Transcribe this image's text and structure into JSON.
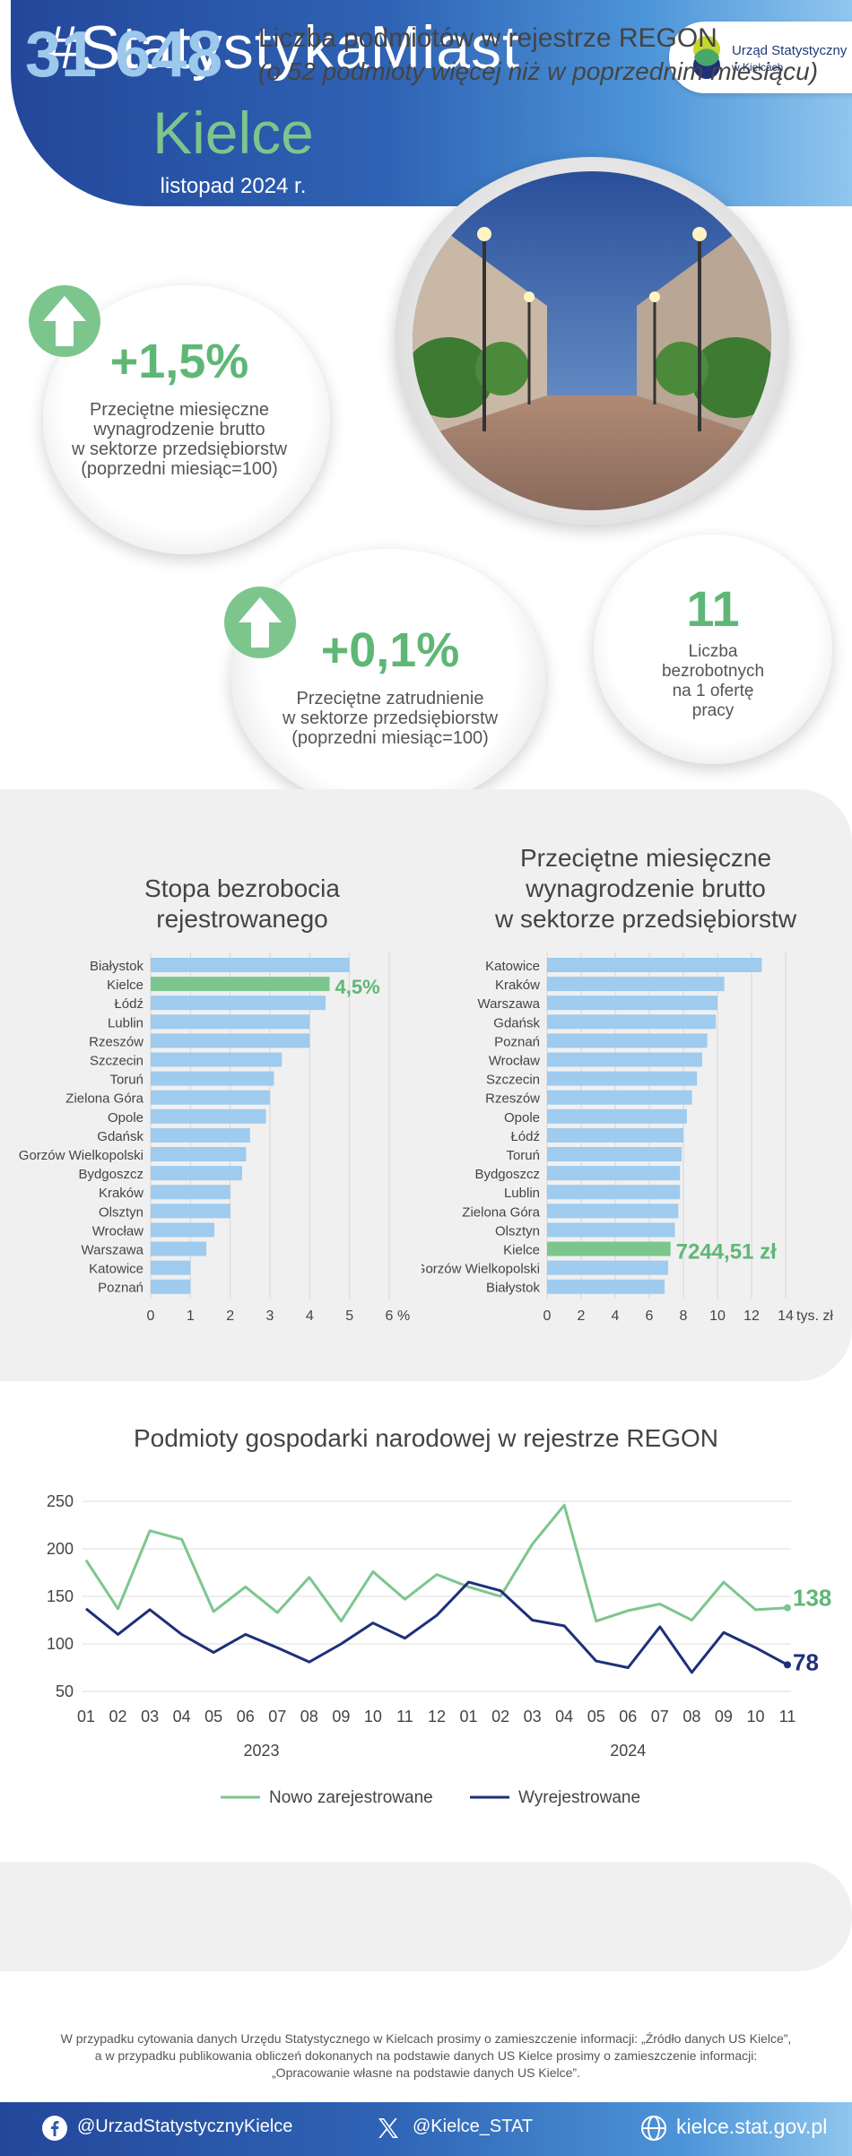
{
  "header": {
    "title": "#StatystykaMiast",
    "city": "Kielce",
    "date": "listopad 2024 r.",
    "logo_line1": "Urząd Statystyczny",
    "logo_line2": "w Kielcach"
  },
  "kpi": {
    "wage": {
      "value": "+1,5%",
      "label_lines": [
        "Przeciętne miesięczne",
        "wynagrodzenie brutto",
        "w sektorze przedsiębiorstw",
        "(poprzedni miesiąc=100)"
      ]
    },
    "employment": {
      "value": "+0,1%",
      "label_lines": [
        "Przeciętne zatrudnienie",
        "w sektorze przedsiębiorstw",
        "(poprzedni miesiąc=100)"
      ]
    },
    "unemployed_per_offer": {
      "value": "11",
      "label_lines": [
        "Liczba",
        "bezrobotnych",
        "na 1 ofertę",
        "pracy"
      ]
    }
  },
  "colors": {
    "green": "#7cc68e",
    "bar_blue": "#9ecbee",
    "navy": "#1f2f7a",
    "band_gray": "#f0f0f0"
  },
  "chart_data": [
    {
      "type": "bar",
      "orientation": "horizontal",
      "title": "Stopa bezrobocia rejestrowanego",
      "title_lines": [
        "Stopa bezrobocia",
        "rejestrowanego"
      ],
      "categories": [
        "Białystok",
        "Kielce",
        "Łódź",
        "Lublin",
        "Rzeszów",
        "Szczecin",
        "Toruń",
        "Zielona Góra",
        "Opole",
        "Gdańsk",
        "Gorzów Wielkopolski",
        "Bydgoszcz",
        "Kraków",
        "Olsztyn",
        "Wrocław",
        "Warszawa",
        "Katowice",
        "Poznań"
      ],
      "values": [
        5.0,
        4.5,
        4.4,
        4.0,
        4.0,
        3.3,
        3.1,
        3.0,
        2.9,
        2.5,
        2.4,
        2.3,
        2.0,
        2.0,
        1.6,
        1.4,
        1.0,
        1.0
      ],
      "highlight": "Kielce",
      "highlight_label": "4,5%",
      "xlim": [
        0,
        6
      ],
      "xticks": [
        "0",
        "1",
        "2",
        "3",
        "4",
        "5",
        "6"
      ],
      "unit": "%"
    },
    {
      "type": "bar",
      "orientation": "horizontal",
      "title": "Przeciętne miesięczne wynagrodzenie brutto w sektorze przedsiębiorstw",
      "title_lines": [
        "Przeciętne miesięczne",
        "wynagrodzenie brutto",
        "w sektorze przedsiębiorstw"
      ],
      "categories": [
        "Katowice",
        "Kraków",
        "Warszawa",
        "Gdańsk",
        "Poznań",
        "Wrocław",
        "Szczecin",
        "Rzeszów",
        "Opole",
        "Łódź",
        "Toruń",
        "Bydgoszcz",
        "Lublin",
        "Zielona Góra",
        "Olsztyn",
        "Kielce",
        "Gorzów Wielkopolski",
        "Białystok"
      ],
      "values": [
        12.6,
        10.4,
        10.0,
        9.9,
        9.4,
        9.1,
        8.8,
        8.5,
        8.2,
        8.0,
        7.9,
        7.8,
        7.8,
        7.7,
        7.5,
        7.24451,
        7.1,
        6.9
      ],
      "highlight": "Kielce",
      "highlight_label": "7244,51 zł",
      "xlim": [
        0,
        14
      ],
      "xticks": [
        "0",
        "2",
        "4",
        "6",
        "8",
        "10",
        "12",
        "14"
      ],
      "unit": "tys. zł"
    },
    {
      "type": "line",
      "title": "Podmioty gospodarki narodowej w rejestrze REGON",
      "categories": [
        "01",
        "02",
        "03",
        "04",
        "05",
        "06",
        "07",
        "08",
        "09",
        "10",
        "11",
        "12",
        "01",
        "02",
        "03",
        "04",
        "05",
        "06",
        "07",
        "08",
        "09",
        "10",
        "11"
      ],
      "year_labels": [
        "2023",
        "2024"
      ],
      "series": [
        {
          "name": "Nowo zarejestrowane",
          "values": [
            188,
            137,
            219,
            210,
            134,
            160,
            133,
            170,
            124,
            176,
            147,
            173,
            160,
            150,
            205,
            246,
            124,
            135,
            142,
            125,
            165,
            136,
            138
          ]
        },
        {
          "name": "Wyrejestrowane",
          "values": [
            137,
            110,
            136,
            110,
            91,
            110,
            96,
            81,
            100,
            122,
            106,
            130,
            165,
            156,
            125,
            119,
            82,
            75,
            118,
            70,
            112,
            96,
            78
          ]
        }
      ],
      "end_labels": [
        "138",
        "78"
      ],
      "ylim": [
        50,
        250
      ],
      "yticks": [
        "50",
        "100",
        "150",
        "200",
        "250"
      ]
    }
  ],
  "regon": {
    "count": "31 648",
    "label": "Liczba podmiotów w rejestrze REGON",
    "sub": "(o 52 podmioty więcej niż w poprzednim miesiącu)"
  },
  "footer": {
    "note_lines": [
      "W przypadku cytowania danych Urzędu Statystycznego w Kielcach prosimy o zamieszczenie informacji: „Źródło danych US Kielce”,",
      "a w przypadku publikowania obliczeń dokonanych na podstawie danych US Kielce prosimy o zamieszczenie informacji:",
      "„Opracowanie własne na podstawie danych US Kielce”."
    ],
    "facebook": "@UrzadStatystycznyKielce",
    "x": "@Kielce_STAT",
    "web": "kielce.stat.gov.pl"
  }
}
